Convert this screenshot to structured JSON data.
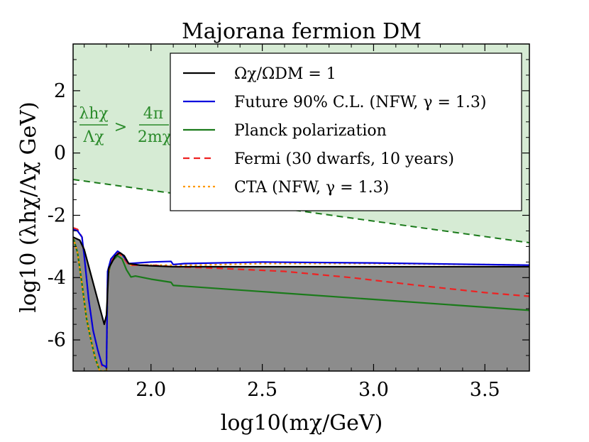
{
  "chart_data": {
    "type": "line",
    "title": "Majorana fermion DM",
    "xlabel": "log10(mχ/GeV)",
    "ylabel": "log10 (λhχ/Λχ GeV)",
    "xlim": [
      1.65,
      3.7
    ],
    "ylim": [
      -7,
      3.5
    ],
    "xticks": [
      2.0,
      2.5,
      3.0,
      3.5
    ],
    "xtick_labels": [
      "2.0",
      "2.5",
      "3.0",
      "3.5"
    ],
    "yticks": [
      -6,
      -4,
      -2,
      0,
      2
    ],
    "ytick_labels": [
      "-6",
      "-4",
      "-2",
      "0",
      "2"
    ],
    "region_annotation": {
      "numerator": "λhχ",
      "denominator": "Λχ",
      "relation": ">",
      "rhs_numerator": "4π",
      "rhs_denominator": "2mχ"
    },
    "series": [
      {
        "name": "Ωχ/ΩDM = 1",
        "color": "#000000",
        "style": "solid",
        "x": [
          1.65,
          1.68,
          1.7,
          1.73,
          1.76,
          1.79,
          1.8,
          1.81,
          1.84,
          1.86,
          1.88,
          1.9,
          1.95,
          2.0,
          2.1,
          2.3,
          2.6,
          3.0,
          3.4,
          3.7
        ],
        "y": [
          -2.7,
          -2.8,
          -3.1,
          -3.9,
          -4.7,
          -5.5,
          -5.2,
          -3.7,
          -3.3,
          -3.2,
          -3.3,
          -3.55,
          -3.6,
          -3.62,
          -3.65,
          -3.65,
          -3.65,
          -3.65,
          -3.65,
          -3.65
        ]
      },
      {
        "name": "Future 90% C.L. (NFW, γ = 1.3)",
        "color": "#0000dd",
        "style": "solid",
        "x": [
          1.65,
          1.67,
          1.69,
          1.7,
          1.72,
          1.74,
          1.76,
          1.78,
          1.795,
          1.8,
          1.805,
          1.82,
          1.85,
          1.87,
          1.9,
          2.0,
          2.09,
          2.1,
          2.15,
          2.5,
          3.0,
          3.5,
          3.7
        ],
        "y": [
          -2.45,
          -2.5,
          -2.7,
          -3.3,
          -4.7,
          -5.7,
          -6.3,
          -6.8,
          -6.85,
          -6.9,
          -3.8,
          -3.4,
          -3.15,
          -3.25,
          -3.55,
          -3.5,
          -3.48,
          -3.58,
          -3.55,
          -3.5,
          -3.53,
          -3.58,
          -3.6
        ]
      },
      {
        "name": "Planck polarization",
        "color": "#1a7a1a",
        "style": "solid",
        "x": [
          1.65,
          1.67,
          1.69,
          1.71,
          1.73,
          1.75,
          1.77,
          1.79,
          1.8,
          1.805,
          1.82,
          1.85,
          1.87,
          1.89,
          1.91,
          1.93,
          2.0,
          2.09,
          2.1,
          2.5,
          3.0,
          3.5,
          3.7
        ],
        "y": [
          -2.7,
          -3.2,
          -4.2,
          -5.3,
          -6.0,
          -6.6,
          -7.0,
          -7.0,
          -7.0,
          -4.0,
          -3.5,
          -3.3,
          -3.4,
          -3.75,
          -3.98,
          -3.95,
          -4.05,
          -4.15,
          -4.25,
          -4.45,
          -4.7,
          -4.95,
          -5.05
        ]
      },
      {
        "name": "Fermi (30 dwarfs, 10 years)",
        "color": "#ee2222",
        "style": "dashed",
        "x": [
          1.65,
          1.67,
          1.69,
          1.7,
          1.72,
          1.74,
          1.76,
          1.78,
          1.795,
          1.8,
          1.805,
          1.82,
          1.85,
          1.87,
          1.9,
          2.0,
          2.1,
          2.3,
          2.6,
          2.9,
          3.2,
          3.5,
          3.7
        ],
        "y": [
          -2.4,
          -2.45,
          -2.7,
          -3.3,
          -4.7,
          -5.7,
          -6.3,
          -6.85,
          -6.9,
          -6.9,
          -3.9,
          -3.45,
          -3.2,
          -3.3,
          -3.6,
          -3.6,
          -3.65,
          -3.7,
          -3.8,
          -4.0,
          -4.25,
          -4.48,
          -4.6
        ]
      },
      {
        "name": "CTA (NFW, γ = 1.3)",
        "color": "#ff9900",
        "style": "dotted",
        "x": [
          1.65,
          1.67,
          1.69,
          1.71,
          1.73,
          1.75,
          1.77,
          1.79,
          1.8,
          1.805,
          1.82,
          1.85,
          1.87,
          1.9,
          2.0,
          2.1,
          2.2,
          2.5,
          3.0,
          3.5,
          3.7
        ],
        "y": [
          -2.7,
          -3.2,
          -4.2,
          -5.3,
          -6.0,
          -6.6,
          -7.0,
          -7.0,
          -7.0,
          -4.0,
          -3.45,
          -3.2,
          -3.3,
          -3.6,
          -3.6,
          -3.6,
          -3.6,
          -3.55,
          -3.55,
          -3.58,
          -3.6
        ]
      }
    ],
    "shaded_regions": [
      {
        "name": "excluded-by-relic-abundance",
        "color": "#8c8c8c",
        "boundary_series": "Ωχ/ΩDM = 1",
        "fill": "below"
      },
      {
        "name": "perturbativity-bound",
        "color": "#d6ebd4",
        "boundary": {
          "x": [
            1.65,
            3.7
          ],
          "y": [
            -0.85,
            -2.88
          ]
        },
        "boundary_color": "#1a7a1a",
        "boundary_style": "dashed",
        "fill": "above"
      }
    ],
    "legend_position": "top-right"
  }
}
